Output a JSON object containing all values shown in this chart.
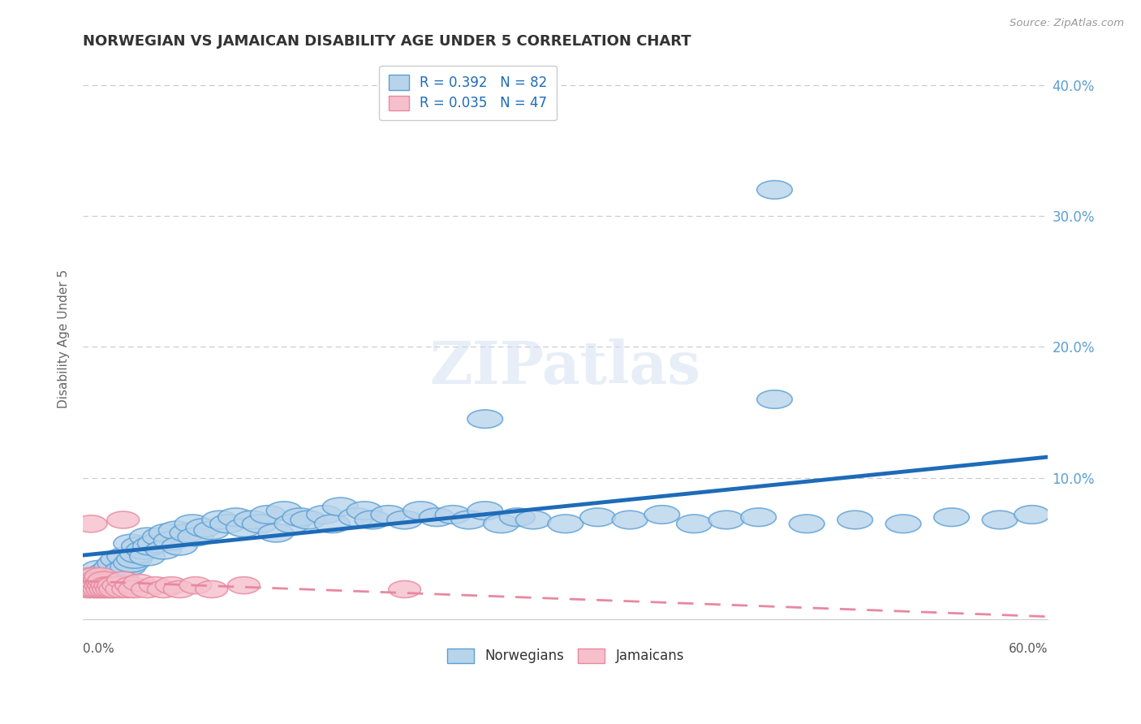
{
  "title": "NORWEGIAN VS JAMAICAN DISABILITY AGE UNDER 5 CORRELATION CHART",
  "source": "Source: ZipAtlas.com",
  "ylabel": "Disability Age Under 5",
  "legend_label_blue": "Norwegians",
  "legend_label_pink": "Jamaicans",
  "norwegian_R": 0.392,
  "norwegian_N": 82,
  "jamaican_R": 0.035,
  "jamaican_N": 47,
  "blue_fill": "#b8d4eb",
  "blue_edge": "#5a9fd4",
  "pink_fill": "#f5c0cc",
  "pink_edge": "#e888a0",
  "trend_blue": "#1e6bb8",
  "trend_pink": "#e888a0",
  "background": "#ffffff",
  "grid_color": "#c8c8d0",
  "title_color": "#333333",
  "tick_color": "#5a9fd4",
  "xmin": 0.0,
  "xmax": 0.6,
  "ymin": -0.008,
  "ymax": 0.42,
  "yticks": [
    0.1,
    0.2,
    0.3,
    0.4
  ],
  "ytick_labels": [
    "10.0%",
    "20.0%",
    "30.0%",
    "40.0%"
  ]
}
